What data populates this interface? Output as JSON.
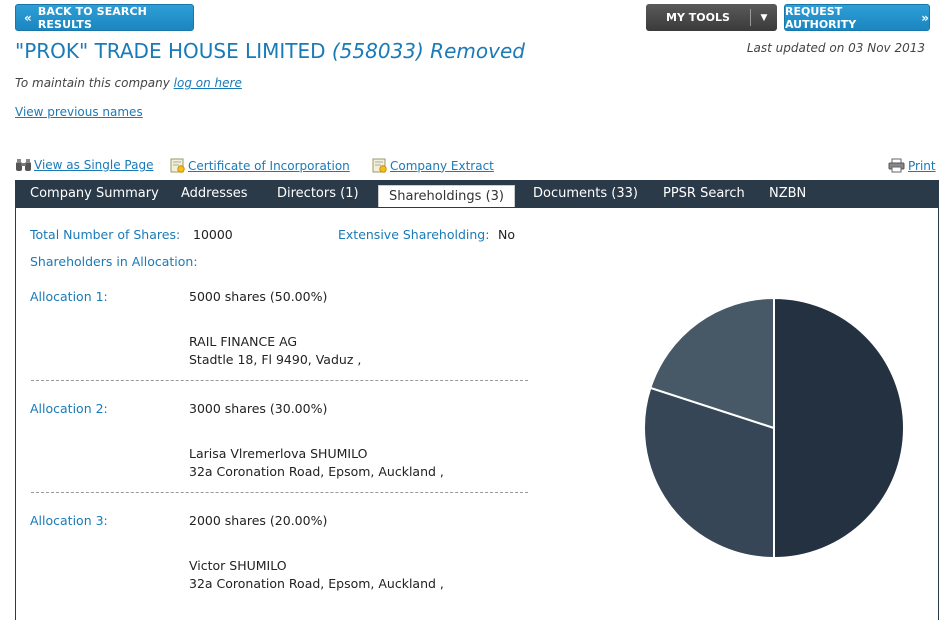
{
  "header": {
    "back_label": "BACK TO SEARCH RESULTS",
    "tools_label": "MY TOOLS",
    "request_label": "REQUEST AUTHORITY",
    "company_name": "\"PROK\" TRADE HOUSE LIMITED",
    "company_number_status": "(558033) Removed",
    "last_updated": "Last updated on 03 Nov 2013",
    "maintain_text": "To maintain this company",
    "maintain_link": "log on here",
    "previous_names": "View previous names"
  },
  "toolbar": {
    "single_page": "View as Single Page",
    "certificate": "Certificate of Incorporation",
    "extract": "Company Extract",
    "print": "Print"
  },
  "tabs": [
    {
      "label": "Company Summary"
    },
    {
      "label": "Addresses"
    },
    {
      "label": "Directors (1)"
    },
    {
      "label": "Shareholdings (3)"
    },
    {
      "label": "Documents (33)"
    },
    {
      "label": "PPSR Search"
    },
    {
      "label": "NZBN"
    }
  ],
  "shareholdings": {
    "total_label": "Total Number of Shares:",
    "total_value": "10000",
    "extensive_label": "Extensive Shareholding:",
    "extensive_value": "No",
    "in_allocation_label": "Shareholders in Allocation:",
    "allocations": [
      {
        "label": "Allocation 1:",
        "shares": "5000 shares (50.00%)",
        "holder": "RAIL FINANCE AG",
        "address": "Stadtle 18, Fl 9490, Vaduz ,"
      },
      {
        "label": "Allocation 2:",
        "shares": "3000 shares (30.00%)",
        "holder": "Larisa Vlremerlova SHUMILO",
        "address": "32a Coronation Road, Epsom, Auckland ,"
      },
      {
        "label": "Allocation 3:",
        "shares": "2000 shares (20.00%)",
        "holder": "Victor SHUMILO",
        "address": "32a Coronation Road, Epsom, Auckland ,"
      }
    ]
  },
  "chart_data": {
    "type": "pie",
    "categories": [
      "Allocation 1",
      "Allocation 2",
      "Allocation 3"
    ],
    "values": [
      50,
      30,
      20
    ],
    "colors": [
      "#243140",
      "#364656",
      "#475866"
    ]
  }
}
